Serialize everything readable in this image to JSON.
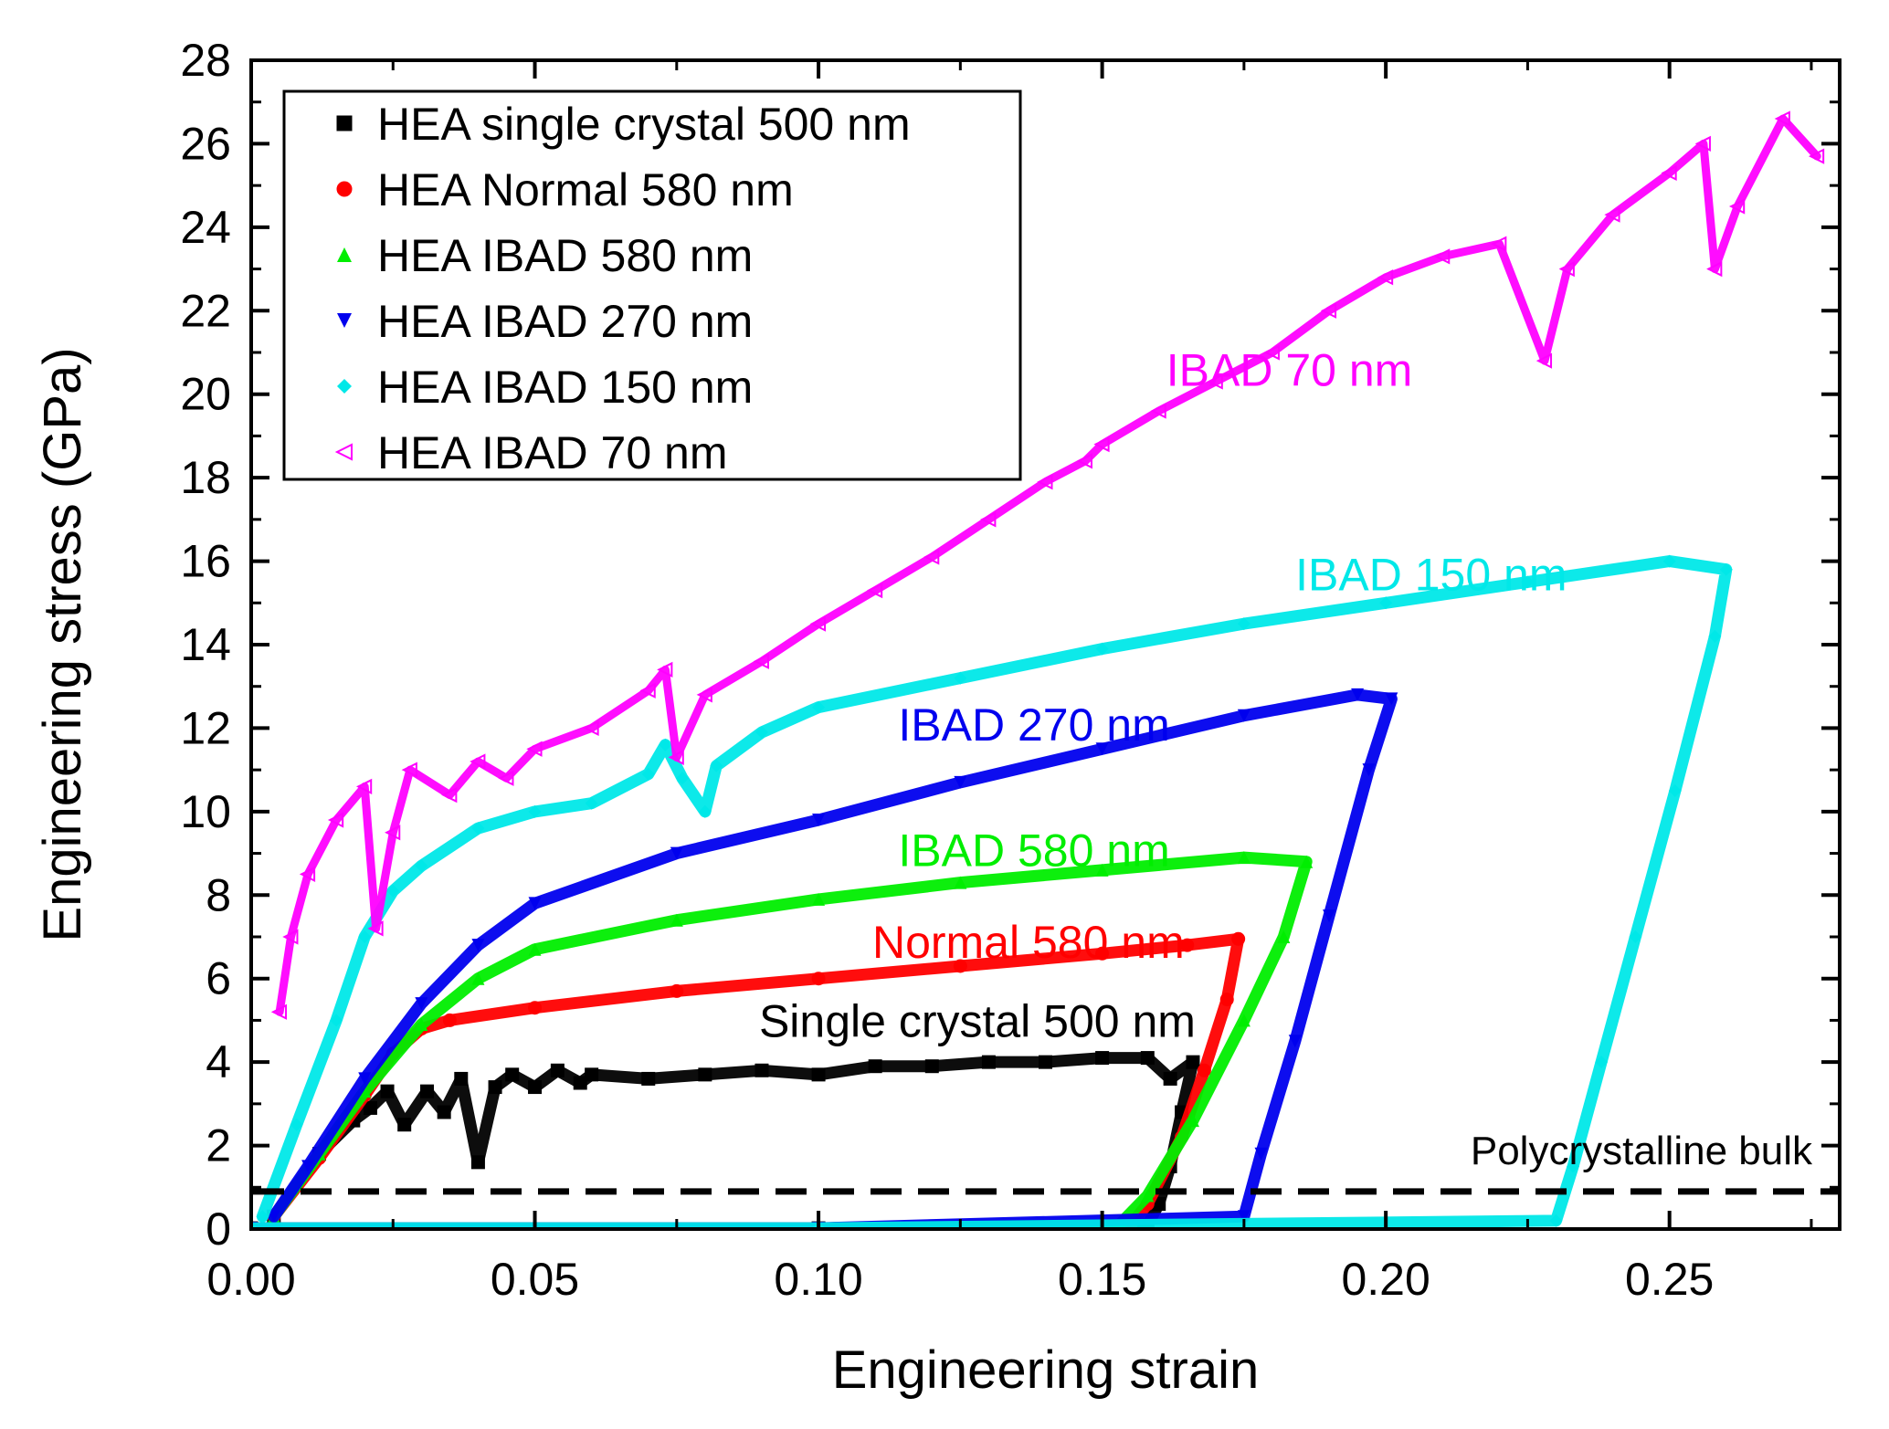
{
  "chart_data": {
    "type": "line",
    "xlabel": "Engineering strain",
    "ylabel": "Engineering stress (GPa)",
    "xlim": [
      0.0,
      0.28
    ],
    "ylim": [
      0,
      28
    ],
    "xticks": [
      0.0,
      0.05,
      0.1,
      0.15,
      0.2,
      0.25
    ],
    "xtick_labels": [
      "0.00",
      "0.05",
      "0.10",
      "0.15",
      "0.20",
      "0.25"
    ],
    "yticks": [
      0,
      2,
      4,
      6,
      8,
      10,
      12,
      14,
      16,
      18,
      20,
      22,
      24,
      26,
      28
    ],
    "ytick_labels": [
      "0",
      "2",
      "4",
      "6",
      "8",
      "10",
      "12",
      "14",
      "16",
      "18",
      "20",
      "22",
      "24",
      "26",
      "28"
    ],
    "legend_position": "top-left",
    "series": [
      {
        "name": "HEA single crystal 500 nm",
        "annotation": "Single crystal 500 nm",
        "color": "#000000",
        "marker": "square-half",
        "points": [
          [
            0.004,
            0.3
          ],
          [
            0.012,
            1.8
          ],
          [
            0.018,
            2.6
          ],
          [
            0.021,
            2.9
          ],
          [
            0.024,
            3.3
          ],
          [
            0.027,
            2.5
          ],
          [
            0.031,
            3.3
          ],
          [
            0.034,
            2.8
          ],
          [
            0.037,
            3.6
          ],
          [
            0.04,
            1.6
          ],
          [
            0.043,
            3.4
          ],
          [
            0.046,
            3.7
          ],
          [
            0.05,
            3.4
          ],
          [
            0.054,
            3.8
          ],
          [
            0.058,
            3.5
          ],
          [
            0.06,
            3.7
          ],
          [
            0.07,
            3.6
          ],
          [
            0.08,
            3.7
          ],
          [
            0.09,
            3.8
          ],
          [
            0.1,
            3.7
          ],
          [
            0.11,
            3.9
          ],
          [
            0.12,
            3.9
          ],
          [
            0.13,
            4.0
          ],
          [
            0.14,
            4.0
          ],
          [
            0.15,
            4.1
          ],
          [
            0.158,
            4.1
          ],
          [
            0.162,
            3.6
          ],
          [
            0.166,
            4.0
          ],
          [
            0.164,
            2.8
          ],
          [
            0.162,
            1.5
          ],
          [
            0.16,
            0.6
          ],
          [
            0.158,
            0.1
          ],
          [
            0.1,
            0.02
          ],
          [
            0.0,
            0.02
          ]
        ]
      },
      {
        "name": "HEA Normal 580 nm",
        "annotation": "Normal 580 nm",
        "color": "#ff0000",
        "marker": "circle-half",
        "points": [
          [
            0.004,
            0.3
          ],
          [
            0.012,
            1.7
          ],
          [
            0.02,
            3.2
          ],
          [
            0.025,
            4.2
          ],
          [
            0.03,
            4.8
          ],
          [
            0.035,
            5.0
          ],
          [
            0.05,
            5.3
          ],
          [
            0.075,
            5.7
          ],
          [
            0.1,
            6.0
          ],
          [
            0.125,
            6.3
          ],
          [
            0.15,
            6.6
          ],
          [
            0.165,
            6.8
          ],
          [
            0.174,
            6.95
          ],
          [
            0.172,
            5.5
          ],
          [
            0.168,
            3.8
          ],
          [
            0.164,
            2.2
          ],
          [
            0.158,
            0.6
          ],
          [
            0.155,
            0.1
          ],
          [
            0.1,
            0.02
          ],
          [
            0.0,
            0.02
          ]
        ]
      },
      {
        "name": "HEA IBAD 580 nm",
        "annotation": "IBAD 580 nm",
        "color": "#00ee00",
        "marker": "triangle-up",
        "points": [
          [
            0.004,
            0.3
          ],
          [
            0.012,
            1.8
          ],
          [
            0.02,
            3.3
          ],
          [
            0.03,
            4.9
          ],
          [
            0.04,
            6.0
          ],
          [
            0.05,
            6.7
          ],
          [
            0.075,
            7.4
          ],
          [
            0.1,
            7.9
          ],
          [
            0.125,
            8.3
          ],
          [
            0.15,
            8.6
          ],
          [
            0.175,
            8.9
          ],
          [
            0.186,
            8.8
          ],
          [
            0.182,
            7.0
          ],
          [
            0.175,
            5.0
          ],
          [
            0.166,
            2.6
          ],
          [
            0.158,
            0.8
          ],
          [
            0.153,
            0.1
          ],
          [
            0.1,
            0.02
          ],
          [
            0.0,
            0.02
          ]
        ]
      },
      {
        "name": "HEA IBAD 270 nm",
        "annotation": "IBAD 270 nm",
        "color": "#0000ee",
        "marker": "triangle-down",
        "points": [
          [
            0.004,
            0.3
          ],
          [
            0.01,
            1.5
          ],
          [
            0.02,
            3.6
          ],
          [
            0.03,
            5.4
          ],
          [
            0.04,
            6.8
          ],
          [
            0.05,
            7.8
          ],
          [
            0.075,
            9.0
          ],
          [
            0.1,
            9.8
          ],
          [
            0.125,
            10.7
          ],
          [
            0.15,
            11.5
          ],
          [
            0.175,
            12.3
          ],
          [
            0.195,
            12.8
          ],
          [
            0.201,
            12.7
          ],
          [
            0.197,
            11.0
          ],
          [
            0.19,
            7.5
          ],
          [
            0.184,
            4.5
          ],
          [
            0.178,
            1.8
          ],
          [
            0.175,
            0.3
          ],
          [
            0.1,
            0.02
          ],
          [
            0.0,
            0.02
          ]
        ]
      },
      {
        "name": "HEA IBAD 150 nm",
        "annotation": "IBAD 150 nm",
        "color": "#00e8e8",
        "marker": "diamond",
        "points": [
          [
            0.002,
            0.3
          ],
          [
            0.008,
            2.5
          ],
          [
            0.015,
            5.0
          ],
          [
            0.02,
            7.0
          ],
          [
            0.025,
            8.1
          ],
          [
            0.03,
            8.7
          ],
          [
            0.04,
            9.6
          ],
          [
            0.05,
            10.0
          ],
          [
            0.06,
            10.2
          ],
          [
            0.07,
            10.9
          ],
          [
            0.073,
            11.6
          ],
          [
            0.076,
            10.8
          ],
          [
            0.08,
            10.0
          ],
          [
            0.082,
            11.1
          ],
          [
            0.09,
            11.9
          ],
          [
            0.1,
            12.5
          ],
          [
            0.125,
            13.2
          ],
          [
            0.15,
            13.9
          ],
          [
            0.175,
            14.5
          ],
          [
            0.2,
            15.0
          ],
          [
            0.225,
            15.5
          ],
          [
            0.25,
            16.0
          ],
          [
            0.26,
            15.8
          ],
          [
            0.258,
            14.2
          ],
          [
            0.251,
            10.5
          ],
          [
            0.244,
            7.0
          ],
          [
            0.238,
            4.0
          ],
          [
            0.233,
            1.5
          ],
          [
            0.23,
            0.2
          ],
          [
            0.1,
            0.02
          ],
          [
            0.0,
            0.02
          ]
        ]
      },
      {
        "name": "HEA IBAD 70 nm",
        "annotation": "IBAD 70 nm",
        "color": "#ff00ff",
        "marker": "triangle-left",
        "points": [
          [
            0.005,
            5.2
          ],
          [
            0.007,
            7.0
          ],
          [
            0.01,
            8.5
          ],
          [
            0.015,
            9.8
          ],
          [
            0.02,
            10.6
          ],
          [
            0.022,
            7.2
          ],
          [
            0.025,
            9.5
          ],
          [
            0.028,
            11.0
          ],
          [
            0.035,
            10.4
          ],
          [
            0.04,
            11.2
          ],
          [
            0.045,
            10.8
          ],
          [
            0.05,
            11.5
          ],
          [
            0.06,
            12.0
          ],
          [
            0.07,
            12.9
          ],
          [
            0.073,
            13.4
          ],
          [
            0.075,
            11.3
          ],
          [
            0.08,
            12.8
          ],
          [
            0.09,
            13.6
          ],
          [
            0.1,
            14.5
          ],
          [
            0.11,
            15.3
          ],
          [
            0.12,
            16.1
          ],
          [
            0.13,
            17.0
          ],
          [
            0.14,
            17.9
          ],
          [
            0.147,
            18.4
          ],
          [
            0.15,
            18.8
          ],
          [
            0.16,
            19.6
          ],
          [
            0.17,
            20.3
          ],
          [
            0.18,
            21.0
          ],
          [
            0.19,
            22.0
          ],
          [
            0.2,
            22.8
          ],
          [
            0.21,
            23.3
          ],
          [
            0.22,
            23.6
          ],
          [
            0.228,
            20.8
          ],
          [
            0.232,
            23.0
          ],
          [
            0.24,
            24.3
          ],
          [
            0.25,
            25.3
          ],
          [
            0.256,
            26.0
          ],
          [
            0.258,
            23.0
          ],
          [
            0.262,
            24.5
          ],
          [
            0.27,
            26.6
          ],
          [
            0.276,
            25.7
          ]
        ]
      }
    ],
    "reference_line": {
      "label": "Polycrystalline bulk",
      "y": 0.9,
      "style": "dashed",
      "color": "#000000"
    }
  }
}
